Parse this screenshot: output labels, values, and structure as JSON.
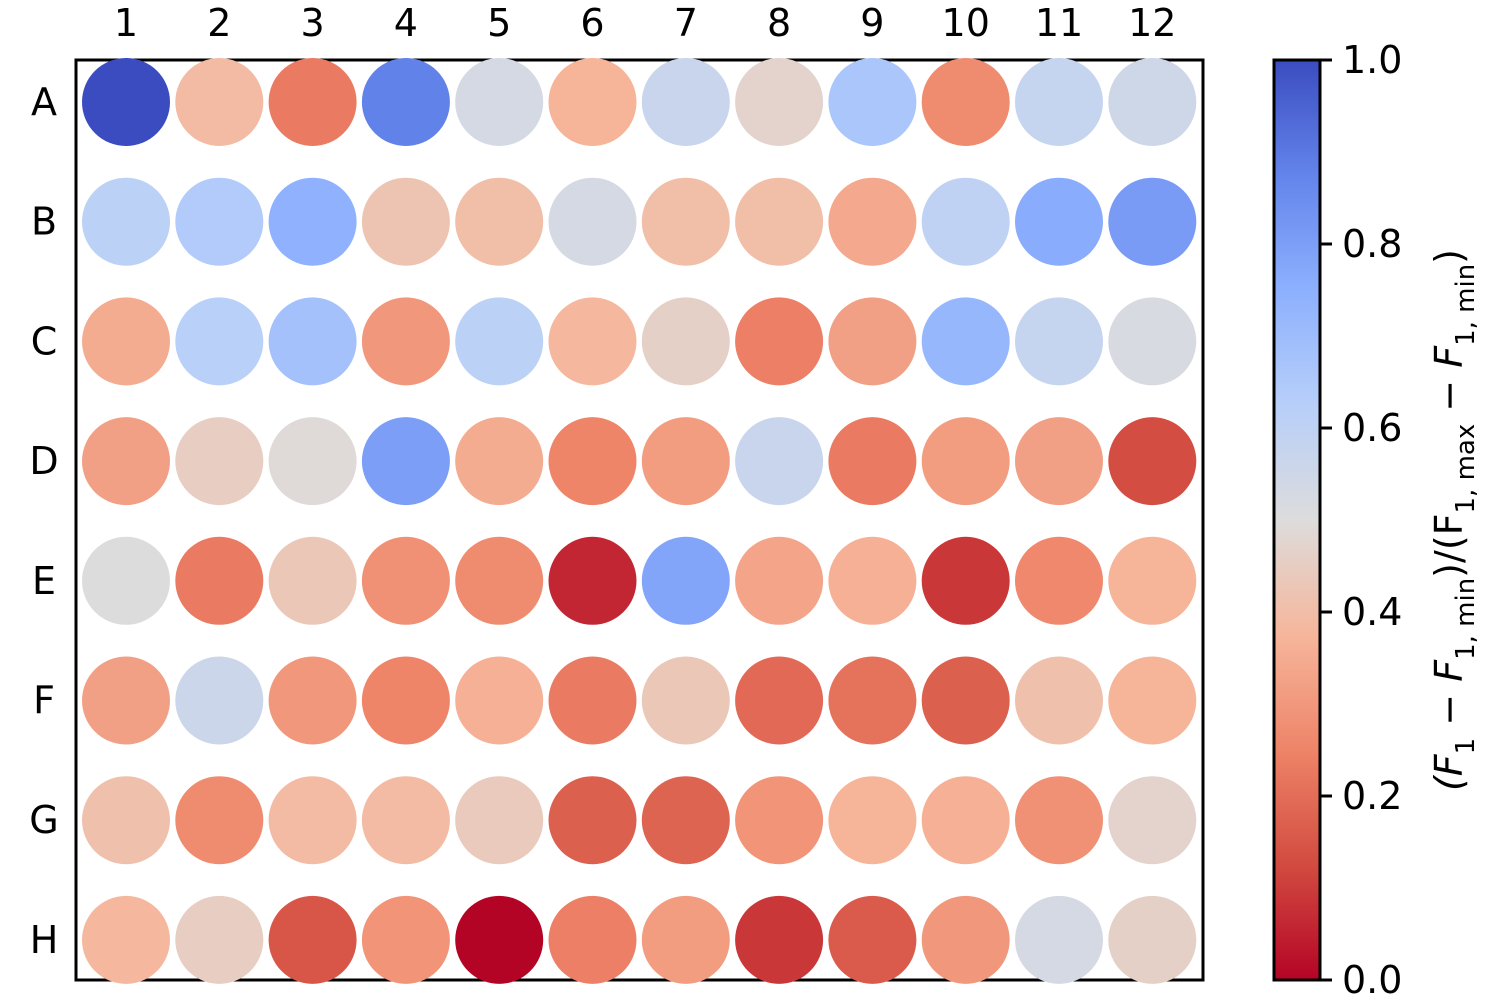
{
  "chart_data": {
    "type": "heatmap",
    "columns": [
      "1",
      "2",
      "3",
      "4",
      "5",
      "6",
      "7",
      "8",
      "9",
      "10",
      "11",
      "12"
    ],
    "rows": [
      "A",
      "B",
      "C",
      "D",
      "E",
      "F",
      "G",
      "H"
    ],
    "values": [
      [
        1.0,
        0.39,
        0.23,
        0.88,
        0.53,
        0.37,
        0.57,
        0.47,
        0.66,
        0.27,
        0.58,
        0.55
      ],
      [
        0.61,
        0.64,
        0.74,
        0.42,
        0.4,
        0.53,
        0.4,
        0.4,
        0.34,
        0.6,
        0.76,
        0.81
      ],
      [
        0.35,
        0.62,
        0.68,
        0.3,
        0.61,
        0.38,
        0.46,
        0.24,
        0.32,
        0.72,
        0.58,
        0.52
      ],
      [
        0.32,
        0.45,
        0.49,
        0.8,
        0.35,
        0.25,
        0.31,
        0.57,
        0.23,
        0.31,
        0.32,
        0.13
      ],
      [
        0.5,
        0.23,
        0.43,
        0.28,
        0.27,
        0.06,
        0.78,
        0.33,
        0.36,
        0.09,
        0.26,
        0.37
      ],
      [
        0.32,
        0.56,
        0.3,
        0.25,
        0.36,
        0.23,
        0.43,
        0.19,
        0.21,
        0.17,
        0.41,
        0.37
      ],
      [
        0.41,
        0.27,
        0.39,
        0.39,
        0.44,
        0.17,
        0.18,
        0.29,
        0.37,
        0.36,
        0.28,
        0.47
      ],
      [
        0.38,
        0.45,
        0.15,
        0.29,
        0.0,
        0.24,
        0.31,
        0.09,
        0.16,
        0.3,
        0.53,
        0.46
      ]
    ],
    "colorbar": {
      "colormap": "coolwarm_r",
      "range": [
        0.0,
        1.0
      ],
      "ticks": [
        "0.0",
        "0.2",
        "0.4",
        "0.6",
        "0.8",
        "1.0"
      ],
      "label_parts": [
        "(F",
        "1",
        " − F",
        "1, min",
        ")/(F",
        "1, max",
        " − F",
        "1, min",
        ")"
      ]
    }
  }
}
